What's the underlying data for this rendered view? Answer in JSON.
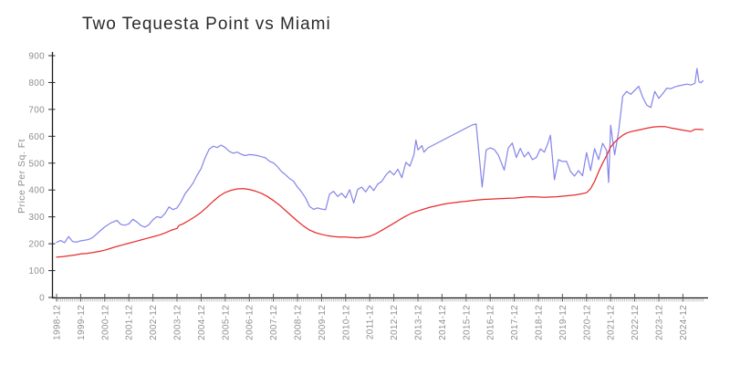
{
  "chart_data": {
    "type": "line",
    "title": "Two Tequesta Point vs Miami",
    "xlabel": "",
    "ylabel": "Price Per Sq. Ft",
    "ylim": [
      0,
      900
    ],
    "ytick_step": 100,
    "yticks": [
      0,
      100,
      200,
      300,
      400,
      500,
      600,
      700,
      800,
      900
    ],
    "grid": false,
    "legend_position": "none",
    "x_axis_note": "monthly minor ticks, yearly (December) major ticks",
    "xtick_labels": [
      "1998-12",
      "1999-12",
      "2000-12",
      "2001-12",
      "2002-12",
      "2003-12",
      "2004-12",
      "2005-12",
      "2006-12",
      "2007-12",
      "2008-12",
      "2009-12",
      "2010-12",
      "2011-12",
      "2012-12",
      "2013-12",
      "2014-12",
      "2015-12",
      "2016-12",
      "2017-12",
      "2018-12",
      "2019-12",
      "2020-12",
      "2021-12",
      "2022-12",
      "2023-12",
      "2024-12"
    ],
    "series": [
      {
        "name": "Two Tequesta Point",
        "color": "#8888ea",
        "points": [
          [
            "1998-12",
            205
          ],
          [
            "1999-02",
            212
          ],
          [
            "1999-04",
            204
          ],
          [
            "1999-06",
            227
          ],
          [
            "1999-08",
            208
          ],
          [
            "1999-10",
            206
          ],
          [
            "1999-12",
            211
          ],
          [
            "2000-02",
            213
          ],
          [
            "2000-04",
            216
          ],
          [
            "2000-06",
            223
          ],
          [
            "2000-09",
            243
          ],
          [
            "2000-12",
            263
          ],
          [
            "2001-03",
            277
          ],
          [
            "2001-06",
            287
          ],
          [
            "2001-08",
            272
          ],
          [
            "2001-10",
            269
          ],
          [
            "2001-12",
            274
          ],
          [
            "2002-02",
            291
          ],
          [
            "2002-04",
            281
          ],
          [
            "2002-06",
            268
          ],
          [
            "2002-08",
            262
          ],
          [
            "2002-10",
            271
          ],
          [
            "2002-12",
            289
          ],
          [
            "2003-02",
            301
          ],
          [
            "2003-04",
            297
          ],
          [
            "2003-06",
            312
          ],
          [
            "2003-08",
            337
          ],
          [
            "2003-10",
            327
          ],
          [
            "2003-12",
            333
          ],
          [
            "2004-02",
            356
          ],
          [
            "2004-04",
            386
          ],
          [
            "2004-06",
            405
          ],
          [
            "2004-08",
            426
          ],
          [
            "2004-10",
            455
          ],
          [
            "2004-12",
            480
          ],
          [
            "2005-02",
            520
          ],
          [
            "2005-04",
            552
          ],
          [
            "2005-06",
            563
          ],
          [
            "2005-08",
            558
          ],
          [
            "2005-10",
            567
          ],
          [
            "2005-12",
            558
          ],
          [
            "2006-02",
            544
          ],
          [
            "2006-04",
            537
          ],
          [
            "2006-06",
            541
          ],
          [
            "2006-08",
            533
          ],
          [
            "2006-10",
            528
          ],
          [
            "2006-12",
            532
          ],
          [
            "2007-02",
            531
          ],
          [
            "2007-04",
            528
          ],
          [
            "2007-06",
            524
          ],
          [
            "2007-08",
            520
          ],
          [
            "2007-10",
            507
          ],
          [
            "2007-12",
            501
          ],
          [
            "2008-02",
            487
          ],
          [
            "2008-04",
            469
          ],
          [
            "2008-06",
            457
          ],
          [
            "2008-08",
            443
          ],
          [
            "2008-10",
            433
          ],
          [
            "2008-12",
            411
          ],
          [
            "2009-02",
            393
          ],
          [
            "2009-04",
            371
          ],
          [
            "2009-06",
            339
          ],
          [
            "2009-08",
            328
          ],
          [
            "2009-10",
            333
          ],
          [
            "2009-12",
            329
          ],
          [
            "2010-02",
            327
          ],
          [
            "2010-04",
            385
          ],
          [
            "2010-06",
            395
          ],
          [
            "2010-08",
            376
          ],
          [
            "2010-10",
            388
          ],
          [
            "2010-12",
            371
          ],
          [
            "2011-02",
            401
          ],
          [
            "2011-04",
            352
          ],
          [
            "2011-06",
            402
          ],
          [
            "2011-08",
            411
          ],
          [
            "2011-10",
            393
          ],
          [
            "2011-12",
            416
          ],
          [
            "2012-02",
            398
          ],
          [
            "2012-04",
            422
          ],
          [
            "2012-06",
            432
          ],
          [
            "2012-08",
            455
          ],
          [
            "2012-10",
            471
          ],
          [
            "2012-12",
            456
          ],
          [
            "2013-02",
            477
          ],
          [
            "2013-04",
            446
          ],
          [
            "2013-06",
            503
          ],
          [
            "2013-08",
            489
          ],
          [
            "2013-10",
            531
          ],
          [
            "2013-11",
            586
          ],
          [
            "2013-12",
            549
          ],
          [
            "2014-02",
            565
          ],
          [
            "2014-03",
            541
          ],
          [
            "2014-05",
            557
          ],
          [
            "2016-03",
            642
          ],
          [
            "2016-05",
            646
          ],
          [
            "2016-08",
            411
          ],
          [
            "2016-10",
            549
          ],
          [
            "2016-12",
            557
          ],
          [
            "2017-02",
            551
          ],
          [
            "2017-04",
            531
          ],
          [
            "2017-07",
            474
          ],
          [
            "2017-09",
            556
          ],
          [
            "2017-11",
            575
          ],
          [
            "2018-01",
            521
          ],
          [
            "2018-03",
            555
          ],
          [
            "2018-05",
            523
          ],
          [
            "2018-07",
            541
          ],
          [
            "2018-09",
            513
          ],
          [
            "2018-11",
            521
          ],
          [
            "2019-01",
            553
          ],
          [
            "2019-03",
            541
          ],
          [
            "2019-05",
            579
          ],
          [
            "2019-06",
            604
          ],
          [
            "2019-08",
            438
          ],
          [
            "2019-10",
            513
          ],
          [
            "2019-12",
            506
          ],
          [
            "2020-02",
            507
          ],
          [
            "2020-04",
            469
          ],
          [
            "2020-06",
            452
          ],
          [
            "2020-08",
            472
          ],
          [
            "2020-10",
            453
          ],
          [
            "2020-12",
            539
          ],
          [
            "2021-02",
            472
          ],
          [
            "2021-04",
            554
          ],
          [
            "2021-06",
            513
          ],
          [
            "2021-08",
            574
          ],
          [
            "2021-10",
            547
          ],
          [
            "2021-11",
            428
          ],
          [
            "2021-12",
            641
          ],
          [
            "2022-02",
            531
          ],
          [
            "2022-04",
            619
          ],
          [
            "2022-06",
            749
          ],
          [
            "2022-08",
            767
          ],
          [
            "2022-10",
            756
          ],
          [
            "2022-12",
            771
          ],
          [
            "2023-02",
            786
          ],
          [
            "2023-04",
            745
          ],
          [
            "2023-06",
            716
          ],
          [
            "2023-08",
            707
          ],
          [
            "2023-10",
            767
          ],
          [
            "2023-12",
            741
          ],
          [
            "2024-02",
            759
          ],
          [
            "2024-04",
            779
          ],
          [
            "2024-06",
            777
          ],
          [
            "2024-08",
            784
          ],
          [
            "2024-10",
            788
          ],
          [
            "2024-12",
            791
          ],
          [
            "2025-02",
            794
          ],
          [
            "2025-04",
            791
          ],
          [
            "2025-06",
            797
          ],
          [
            "2025-07",
            852
          ],
          [
            "2025-08",
            803
          ],
          [
            "2025-09",
            799
          ],
          [
            "2025-10",
            807
          ]
        ]
      },
      {
        "name": "Miami",
        "color": "#e62c2c",
        "points": [
          [
            "1998-12",
            150
          ],
          [
            "1999-03",
            152
          ],
          [
            "1999-06",
            155
          ],
          [
            "1999-09",
            158
          ],
          [
            "1999-12",
            162
          ],
          [
            "2000-03",
            164
          ],
          [
            "2000-06",
            167
          ],
          [
            "2000-09",
            171
          ],
          [
            "2000-12",
            176
          ],
          [
            "2001-03",
            183
          ],
          [
            "2001-06",
            190
          ],
          [
            "2001-09",
            196
          ],
          [
            "2001-12",
            202
          ],
          [
            "2002-03",
            208
          ],
          [
            "2002-06",
            214
          ],
          [
            "2002-09",
            220
          ],
          [
            "2002-12",
            226
          ],
          [
            "2003-03",
            232
          ],
          [
            "2003-06",
            240
          ],
          [
            "2003-09",
            250
          ],
          [
            "2003-12",
            257
          ],
          [
            "2004-01",
            268
          ],
          [
            "2004-03",
            274
          ],
          [
            "2004-06",
            287
          ],
          [
            "2004-09",
            301
          ],
          [
            "2004-12",
            317
          ],
          [
            "2005-03",
            337
          ],
          [
            "2005-06",
            358
          ],
          [
            "2005-09",
            377
          ],
          [
            "2005-12",
            391
          ],
          [
            "2006-03",
            399
          ],
          [
            "2006-06",
            404
          ],
          [
            "2006-09",
            405
          ],
          [
            "2006-12",
            402
          ],
          [
            "2007-03",
            396
          ],
          [
            "2007-06",
            388
          ],
          [
            "2007-09",
            376
          ],
          [
            "2007-12",
            361
          ],
          [
            "2008-03",
            344
          ],
          [
            "2008-06",
            324
          ],
          [
            "2008-09",
            304
          ],
          [
            "2008-12",
            284
          ],
          [
            "2009-03",
            266
          ],
          [
            "2009-06",
            251
          ],
          [
            "2009-09",
            241
          ],
          [
            "2009-12",
            235
          ],
          [
            "2010-03",
            230
          ],
          [
            "2010-06",
            227
          ],
          [
            "2010-09",
            225
          ],
          [
            "2010-12",
            225
          ],
          [
            "2011-03",
            223
          ],
          [
            "2011-06",
            222
          ],
          [
            "2011-09",
            224
          ],
          [
            "2011-12",
            228
          ],
          [
            "2012-03",
            237
          ],
          [
            "2012-06",
            250
          ],
          [
            "2012-09",
            263
          ],
          [
            "2012-12",
            276
          ],
          [
            "2013-03",
            290
          ],
          [
            "2013-06",
            303
          ],
          [
            "2013-09",
            314
          ],
          [
            "2013-12",
            322
          ],
          [
            "2014-03",
            329
          ],
          [
            "2014-06",
            336
          ],
          [
            "2014-09",
            341
          ],
          [
            "2014-12",
            346
          ],
          [
            "2015-03",
            350
          ],
          [
            "2015-06",
            353
          ],
          [
            "2015-09",
            356
          ],
          [
            "2015-12",
            358
          ],
          [
            "2016-03",
            361
          ],
          [
            "2016-06",
            363
          ],
          [
            "2016-09",
            365
          ],
          [
            "2016-12",
            366
          ],
          [
            "2017-03",
            367
          ],
          [
            "2017-06",
            368
          ],
          [
            "2017-09",
            369
          ],
          [
            "2017-12",
            370
          ],
          [
            "2018-03",
            372
          ],
          [
            "2018-06",
            374
          ],
          [
            "2018-09",
            375
          ],
          [
            "2018-12",
            374
          ],
          [
            "2019-03",
            373
          ],
          [
            "2019-06",
            374
          ],
          [
            "2019-09",
            375
          ],
          [
            "2019-12",
            377
          ],
          [
            "2020-03",
            379
          ],
          [
            "2020-06",
            381
          ],
          [
            "2020-09",
            385
          ],
          [
            "2020-12",
            390
          ],
          [
            "2021-02",
            405
          ],
          [
            "2021-04",
            432
          ],
          [
            "2021-06",
            468
          ],
          [
            "2021-08",
            500
          ],
          [
            "2021-10",
            528
          ],
          [
            "2021-12",
            560
          ],
          [
            "2022-02",
            578
          ],
          [
            "2022-04",
            592
          ],
          [
            "2022-06",
            604
          ],
          [
            "2022-08",
            612
          ],
          [
            "2022-10",
            617
          ],
          [
            "2022-12",
            620
          ],
          [
            "2023-03",
            625
          ],
          [
            "2023-06",
            630
          ],
          [
            "2023-09",
            634
          ],
          [
            "2023-12",
            636
          ],
          [
            "2024-03",
            636
          ],
          [
            "2024-06",
            631
          ],
          [
            "2024-09",
            627
          ],
          [
            "2024-12",
            623
          ],
          [
            "2025-02",
            620
          ],
          [
            "2025-04",
            618
          ],
          [
            "2025-06",
            626
          ],
          [
            "2025-08",
            626
          ],
          [
            "2025-10",
            625
          ]
        ]
      }
    ]
  }
}
